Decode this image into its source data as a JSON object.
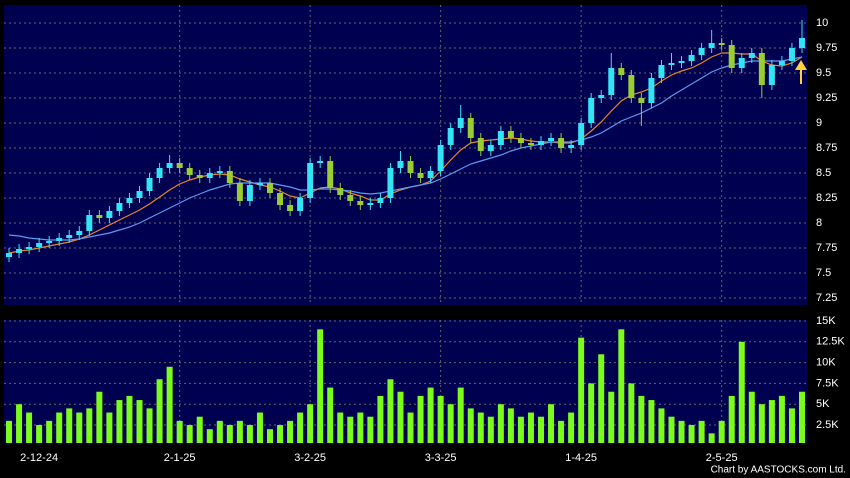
{
  "chart_data": [
    {
      "type": "candlestick",
      "ylim": [
        7.18,
        10.18
      ],
      "yticks": [
        7.25,
        7.5,
        7.75,
        8,
        8.25,
        8.5,
        8.75,
        9,
        9.25,
        9.5,
        9.75,
        10
      ],
      "grid": true,
      "up_color": "#33e4f4",
      "down_color": "#9acd32",
      "open": [
        7.66,
        7.7,
        7.74,
        7.76,
        7.8,
        7.82,
        7.85,
        7.88,
        7.92,
        8.08,
        8.05,
        8.12,
        8.2,
        8.25,
        8.32,
        8.45,
        8.55,
        8.6,
        8.55,
        8.48,
        8.45,
        8.5,
        8.52,
        8.4,
        8.22,
        8.38,
        8.4,
        8.3,
        8.18,
        8.12,
        8.25,
        8.6,
        8.62,
        8.35,
        8.28,
        8.22,
        8.18,
        8.2,
        8.25,
        8.55,
        8.62,
        8.5,
        8.45,
        8.52,
        8.78,
        8.95,
        9.05,
        8.85,
        8.72,
        8.78,
        8.92,
        8.85,
        8.8,
        8.78,
        8.82,
        8.85,
        8.75,
        8.78,
        9.0,
        9.25,
        9.28,
        9.55,
        9.48,
        9.25,
        9.2,
        9.45,
        9.58,
        9.6,
        9.62,
        9.68,
        9.75,
        9.8,
        9.78,
        9.55,
        9.65,
        9.7,
        9.38,
        9.58,
        9.62,
        9.75
      ],
      "high": [
        7.75,
        7.79,
        7.81,
        7.85,
        7.87,
        7.9,
        7.93,
        7.97,
        8.13,
        8.13,
        8.17,
        8.25,
        8.3,
        8.37,
        8.5,
        8.6,
        8.68,
        8.65,
        8.6,
        8.53,
        8.55,
        8.57,
        8.57,
        8.45,
        8.43,
        8.45,
        8.45,
        8.35,
        8.23,
        8.3,
        8.65,
        8.67,
        8.67,
        8.4,
        8.33,
        8.27,
        8.25,
        8.3,
        8.6,
        8.72,
        8.67,
        8.55,
        8.57,
        8.83,
        9.0,
        9.18,
        9.1,
        8.9,
        8.83,
        8.97,
        8.97,
        8.9,
        8.85,
        8.87,
        8.9,
        8.9,
        8.83,
        9.05,
        9.3,
        9.33,
        9.7,
        9.6,
        9.53,
        9.3,
        9.5,
        9.63,
        9.7,
        9.67,
        9.73,
        9.8,
        9.93,
        9.85,
        9.83,
        9.7,
        9.75,
        9.75,
        9.63,
        9.67,
        9.8,
        10.03
      ],
      "low": [
        7.61,
        7.65,
        7.69,
        7.71,
        7.75,
        7.77,
        7.8,
        7.83,
        7.87,
        8.0,
        8.0,
        8.07,
        8.15,
        8.2,
        8.27,
        8.4,
        8.5,
        8.5,
        8.43,
        8.4,
        8.4,
        8.45,
        8.35,
        8.17,
        8.17,
        8.33,
        8.25,
        8.13,
        8.07,
        8.07,
        8.2,
        8.55,
        8.3,
        8.23,
        8.17,
        8.13,
        8.13,
        8.15,
        8.2,
        8.5,
        8.45,
        8.4,
        8.4,
        8.47,
        8.73,
        8.9,
        8.8,
        8.67,
        8.67,
        8.73,
        8.8,
        8.75,
        8.73,
        8.73,
        8.77,
        8.7,
        8.7,
        8.73,
        8.95,
        9.2,
        9.23,
        9.43,
        9.2,
        8.97,
        9.15,
        9.4,
        9.53,
        9.55,
        9.57,
        9.63,
        9.7,
        9.73,
        9.5,
        9.5,
        9.6,
        9.25,
        9.33,
        9.53,
        9.57,
        9.7
      ],
      "close": [
        7.7,
        7.74,
        7.76,
        7.8,
        7.82,
        7.85,
        7.88,
        7.92,
        8.08,
        8.05,
        8.12,
        8.2,
        8.25,
        8.32,
        8.45,
        8.55,
        8.6,
        8.55,
        8.48,
        8.45,
        8.5,
        8.52,
        8.4,
        8.22,
        8.38,
        8.4,
        8.3,
        8.18,
        8.12,
        8.25,
        8.6,
        8.62,
        8.35,
        8.28,
        8.22,
        8.18,
        8.2,
        8.25,
        8.55,
        8.62,
        8.5,
        8.45,
        8.52,
        8.78,
        8.95,
        9.05,
        8.85,
        8.72,
        8.78,
        8.92,
        8.85,
        8.8,
        8.78,
        8.82,
        8.85,
        8.75,
        8.78,
        9.0,
        9.25,
        9.28,
        9.55,
        9.48,
        9.25,
        9.2,
        9.45,
        9.58,
        9.6,
        9.62,
        9.68,
        9.75,
        9.8,
        9.78,
        9.55,
        9.65,
        9.7,
        9.38,
        9.58,
        9.62,
        9.75,
        9.85
      ],
      "lines": [
        {
          "color": "#e8862a",
          "values": [
            7.7,
            7.72,
            7.73,
            7.75,
            7.77,
            7.79,
            7.81,
            7.84,
            7.88,
            7.93,
            7.98,
            8.03,
            8.08,
            8.13,
            8.19,
            8.26,
            8.33,
            8.39,
            8.43,
            8.46,
            8.48,
            8.49,
            8.48,
            8.44,
            8.41,
            8.38,
            8.36,
            8.32,
            8.27,
            8.25,
            8.3,
            8.35,
            8.36,
            8.34,
            8.3,
            8.27,
            8.23,
            8.23,
            8.29,
            8.33,
            8.36,
            8.38,
            8.42,
            8.52,
            8.63,
            8.73,
            8.8,
            8.82,
            8.83,
            8.84,
            8.85,
            8.84,
            8.82,
            8.81,
            8.81,
            8.8,
            8.8,
            8.84,
            8.92,
            9.01,
            9.12,
            9.22,
            9.28,
            9.31,
            9.35,
            9.42,
            9.48,
            9.52,
            9.55,
            9.6,
            9.66,
            9.7,
            9.7,
            9.69,
            9.69,
            9.62,
            9.58,
            9.57,
            9.6,
            9.66
          ]
        },
        {
          "color": "#5b9bf0",
          "values": [
            7.88,
            7.87,
            7.85,
            7.84,
            7.83,
            7.83,
            7.83,
            7.84,
            7.86,
            7.88,
            7.9,
            7.93,
            7.96,
            8.0,
            8.05,
            8.1,
            8.15,
            8.2,
            8.25,
            8.29,
            8.33,
            8.36,
            8.39,
            8.4,
            8.4,
            8.4,
            8.4,
            8.38,
            8.36,
            8.33,
            8.33,
            8.34,
            8.34,
            8.33,
            8.32,
            8.3,
            8.29,
            8.3,
            8.32,
            8.34,
            8.36,
            8.38,
            8.4,
            8.44,
            8.49,
            8.54,
            8.59,
            8.62,
            8.65,
            8.68,
            8.72,
            8.75,
            8.77,
            8.79,
            8.81,
            8.81,
            8.81,
            8.83,
            8.86,
            8.9,
            8.96,
            9.02,
            9.06,
            9.1,
            9.15,
            9.2,
            9.27,
            9.33,
            9.39,
            9.45,
            9.51,
            9.55,
            9.58,
            9.6,
            9.62,
            9.62,
            9.62,
            9.62,
            9.64,
            9.66
          ]
        }
      ]
    },
    {
      "type": "bar",
      "color": "#7cfc1a",
      "ylim": [
        340,
        15120
      ],
      "grid": true,
      "yticks": [
        {
          "value": 2500,
          "label": "2.5K"
        },
        {
          "value": 5000,
          "label": "5K"
        },
        {
          "value": 7500,
          "label": "7.5K"
        },
        {
          "value": 10000,
          "label": "10K"
        },
        {
          "value": 12500,
          "label": "12.5K"
        },
        {
          "value": 15000,
          "label": "15K"
        }
      ],
      "categories": [
        null,
        null,
        null,
        "2-12-24",
        null,
        null,
        null,
        null,
        null,
        null,
        null,
        null,
        null,
        null,
        null,
        null,
        null,
        "2-1-25",
        null,
        null,
        null,
        null,
        null,
        null,
        null,
        null,
        null,
        null,
        null,
        null,
        "3-2-25",
        null,
        null,
        null,
        null,
        null,
        null,
        null,
        null,
        null,
        null,
        null,
        null,
        "3-3-25",
        null,
        null,
        null,
        null,
        null,
        null,
        null,
        null,
        null,
        null,
        null,
        null,
        null,
        "1-4-25",
        null,
        null,
        null,
        null,
        null,
        null,
        null,
        null,
        null,
        null,
        null,
        null,
        null,
        "2-5-25",
        null,
        null,
        null,
        null,
        null,
        null,
        null,
        null
      ],
      "values": [
        3000,
        5000,
        4000,
        2500,
        3000,
        4000,
        4500,
        4000,
        4500,
        6500,
        4000,
        5500,
        6000,
        5500,
        4500,
        8000,
        9500,
        3000,
        2500,
        3500,
        2000,
        3000,
        2500,
        3000,
        2500,
        4000,
        2000,
        2500,
        3000,
        4000,
        5000,
        14000,
        7000,
        4000,
        3500,
        4000,
        3500,
        6000,
        8000,
        6500,
        4000,
        6000,
        7000,
        6000,
        5000,
        7000,
        4500,
        4000,
        3500,
        5000,
        4500,
        3500,
        4000,
        3500,
        5000,
        3000,
        4000,
        13000,
        7500,
        11000,
        6500,
        14000,
        7500,
        6000,
        5500,
        4500,
        3500,
        3000,
        2500,
        3000,
        1500,
        3000,
        6000,
        12500,
        6500,
        5000,
        5500,
        6000,
        4500,
        6500
      ]
    }
  ],
  "footer": "Chart by AASTOCKS.com Ltd."
}
